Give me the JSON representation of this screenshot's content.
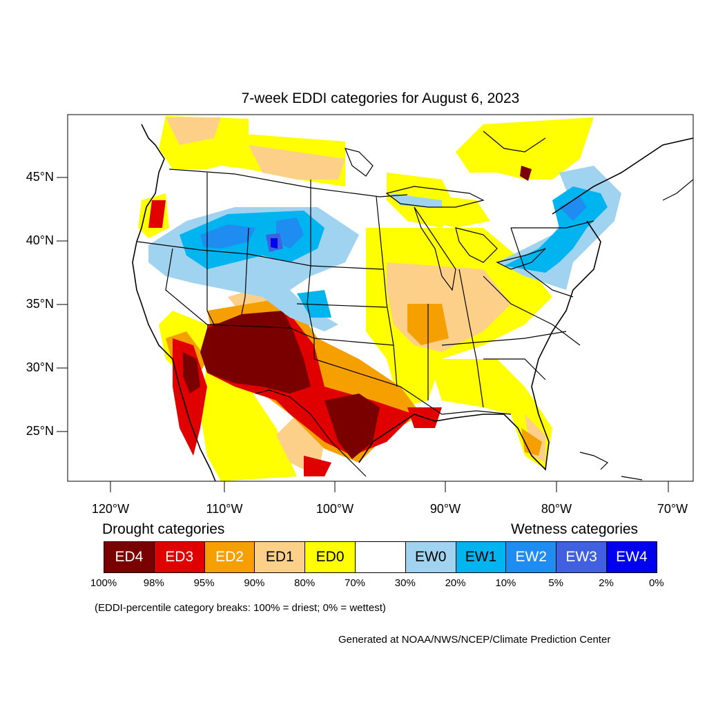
{
  "title": "7-week EDDI categories for August 6, 2023",
  "lat_labels": [
    "45°N",
    "40°N",
    "35°N",
    "30°N",
    "25°N"
  ],
  "lon_labels": [
    "120°W",
    "110°W",
    "100°W",
    "90°W",
    "80°W",
    "70°W"
  ],
  "legend": {
    "drought_heading": "Drought categories",
    "wetness_heading": "Wetness categories",
    "categories": [
      {
        "label": "ED4",
        "color": "#7a0000",
        "text_color": "#ffffff"
      },
      {
        "label": "ED3",
        "color": "#e00000",
        "text_color": "#ffffff"
      },
      {
        "label": "ED2",
        "color": "#f5a000",
        "text_color": "#ffffff"
      },
      {
        "label": "ED1",
        "color": "#fdd08a",
        "text_color": "#000000"
      },
      {
        "label": "ED0",
        "color": "#ffff00",
        "text_color": "#000000"
      },
      {
        "label": "",
        "color": "#ffffff",
        "text_color": "#000000"
      },
      {
        "label": "EW0",
        "color": "#9fd3f0",
        "text_color": "#000000"
      },
      {
        "label": "EW1",
        "color": "#00b4f0",
        "text_color": "#000000"
      },
      {
        "label": "EW2",
        "color": "#1e8cf0",
        "text_color": "#ffffff"
      },
      {
        "label": "EW3",
        "color": "#4060e0",
        "text_color": "#ffffff"
      },
      {
        "label": "EW4",
        "color": "#0000f0",
        "text_color": "#ffffff"
      }
    ],
    "percentiles": [
      "100%",
      "98%",
      "95%",
      "90%",
      "80%",
      "70%",
      "30%",
      "20%",
      "10%",
      "5%",
      "2%",
      "0%"
    ]
  },
  "note": "(EDDI-percentile category breaks: 100% = driest; 0% = wettest)",
  "credit": "Generated at NOAA/NWS/NCEP/Climate Prediction Center"
}
